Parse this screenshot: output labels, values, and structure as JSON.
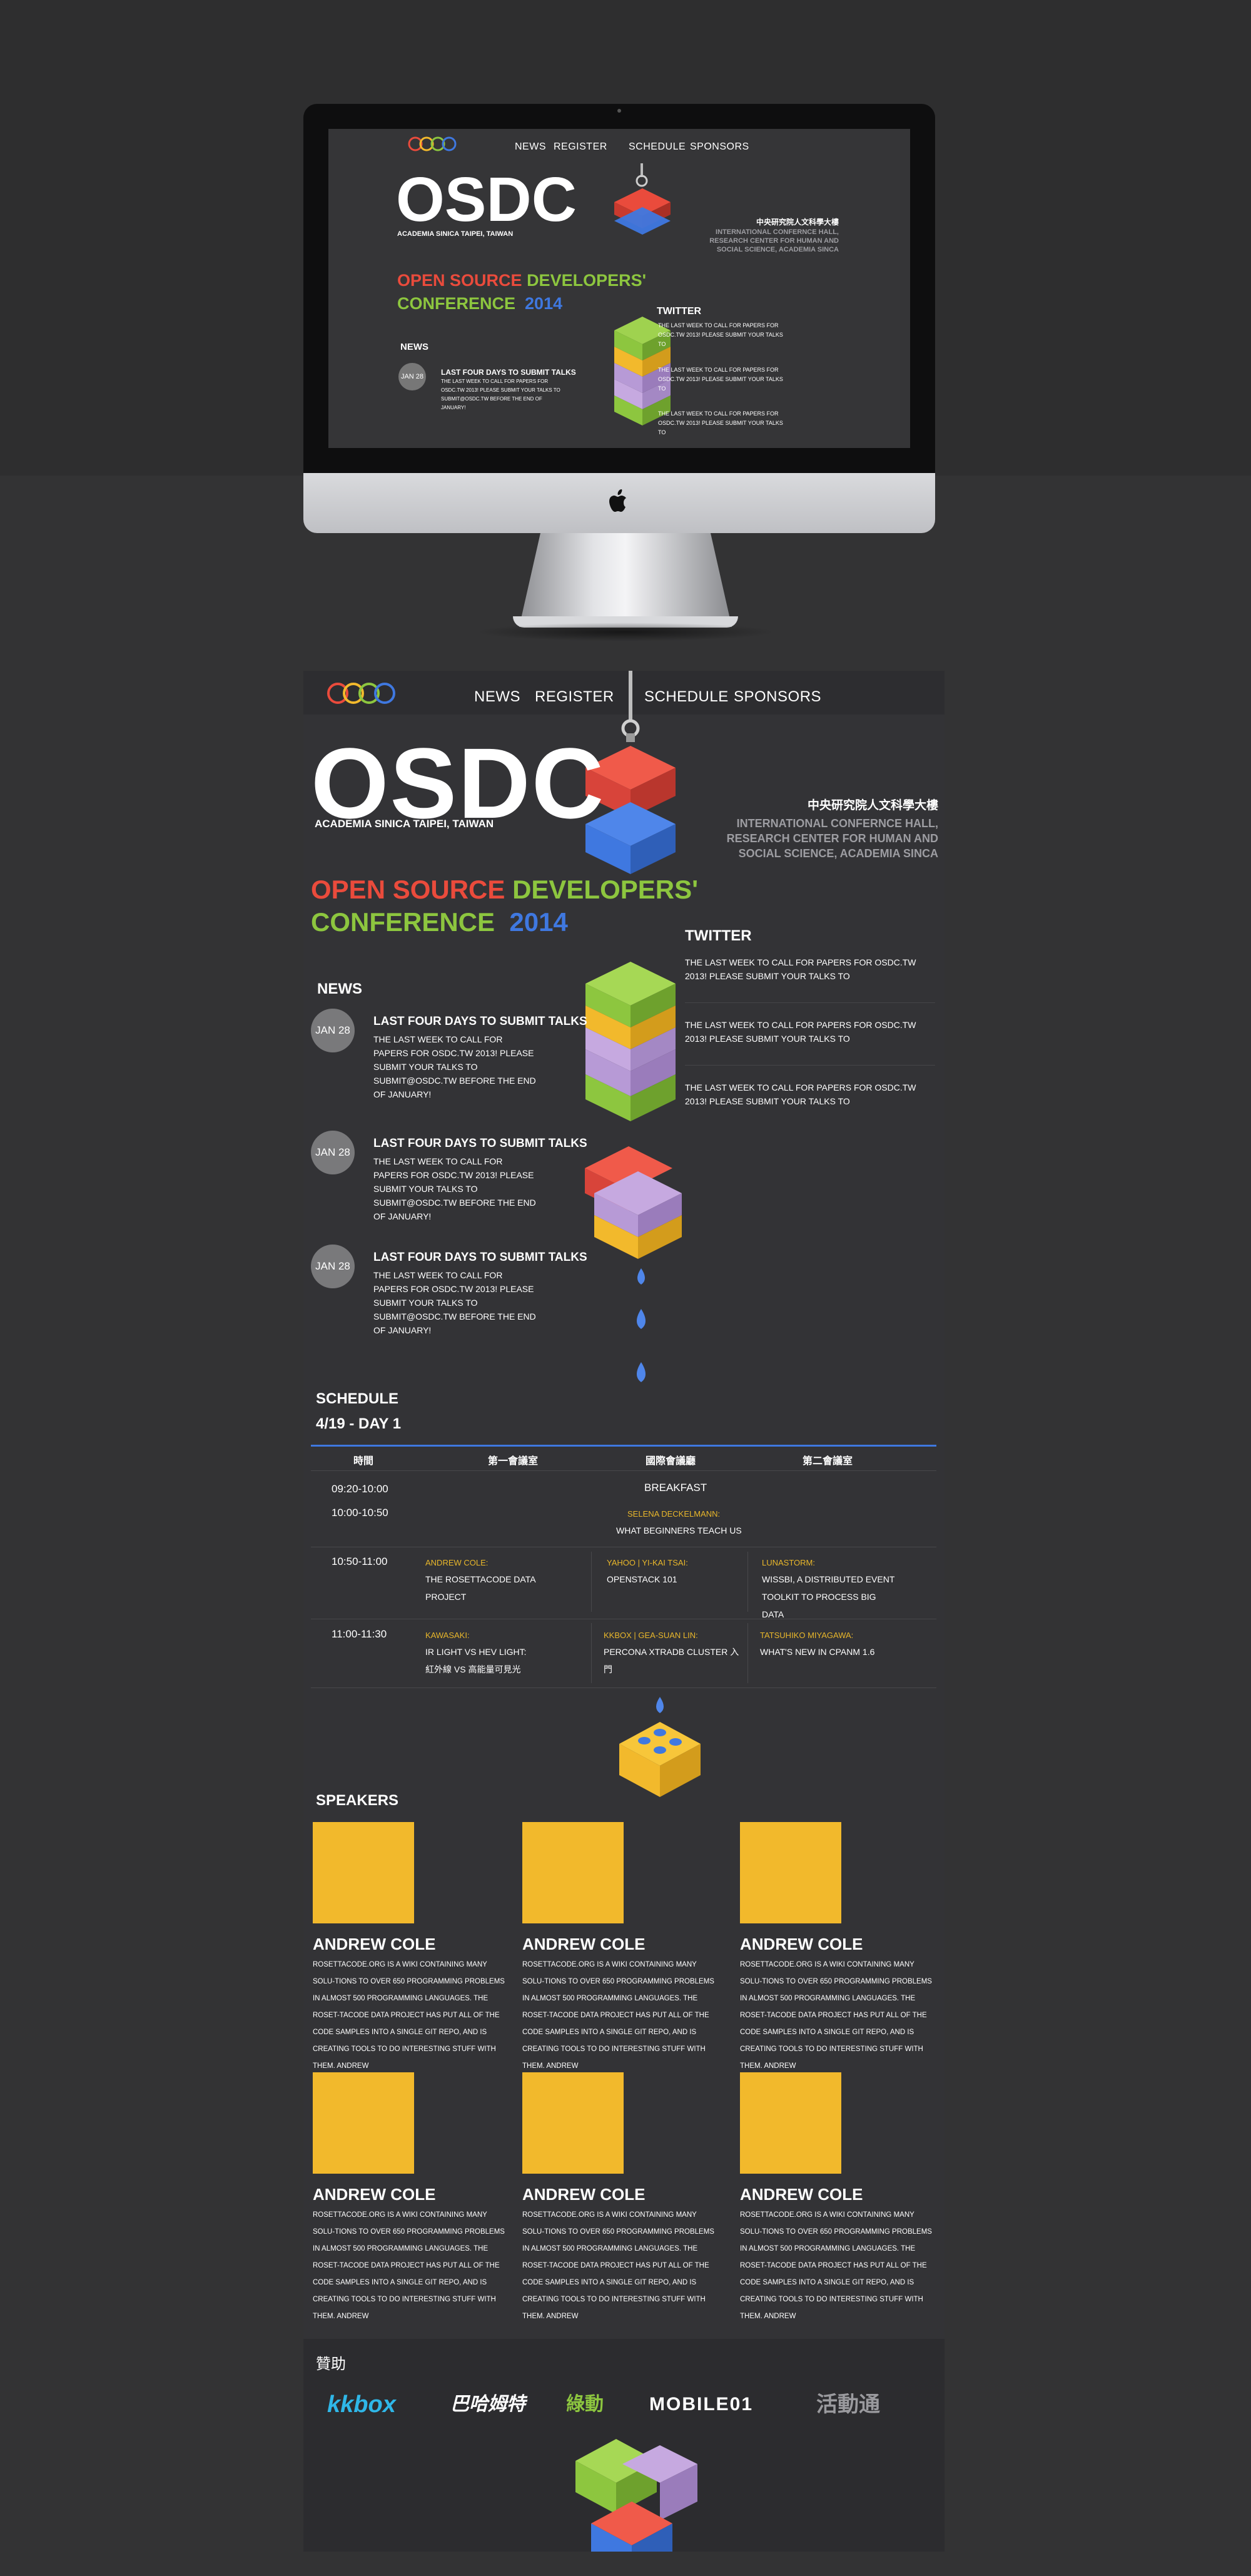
{
  "site": {
    "nav": [
      "NEWS",
      "REGISTER",
      "SCHEDULE",
      "SPONSORS"
    ],
    "hero_title": "OSDC",
    "hero_subtitle": "ACADEMIA SINICA TAIPEI, TAIWAN",
    "venue_cn": "中央研究院人文科學大樓",
    "venue_en": "INTERNATIONAL CONFERNCE HALL, RESEARCH CENTER FOR HUMAN AND SOCIAL SCIENCE, ACADEMIA SINCA",
    "conf_line1_a": "OPEN SOURCE",
    "conf_line1_b": "DEVELOPERS'",
    "conf_line2_a": "CONFERENCE",
    "conf_line2_b": "2014",
    "colors": {
      "red": "#ea4b3c",
      "green": "#8dc63f",
      "blue": "#3f78e0",
      "yellow": "#f2b92c",
      "purple": "#b79ad6"
    }
  },
  "news": {
    "heading": "NEWS",
    "items": [
      {
        "date": "JAN 28",
        "title": "LAST FOUR DAYS TO SUBMIT TALKS",
        "body": "THE LAST WEEK TO CALL FOR PAPERS FOR OSDC.TW 2013! PLEASE SUBMIT YOUR TALKS TO SUBMIT@OSDC.TW BEFORE THE END OF JANUARY!"
      },
      {
        "date": "JAN 28",
        "title": "LAST FOUR DAYS TO SUBMIT TALKS",
        "body": "THE LAST WEEK TO CALL FOR PAPERS FOR OSDC.TW 2013! PLEASE SUBMIT YOUR TALKS TO SUBMIT@OSDC.TW BEFORE THE END OF JANUARY!"
      },
      {
        "date": "JAN 28",
        "title": "LAST FOUR DAYS TO SUBMIT TALKS",
        "body": "THE LAST WEEK TO CALL FOR PAPERS FOR OSDC.TW 2013! PLEASE SUBMIT YOUR TALKS TO SUBMIT@OSDC.TW BEFORE THE END OF JANUARY!"
      }
    ]
  },
  "twitter": {
    "heading": "TWITTER",
    "tweets": [
      "THE LAST WEEK TO CALL FOR PAPERS FOR OSDC.TW 2013! PLEASE SUBMIT YOUR TALKS TO",
      "THE LAST WEEK TO CALL FOR PAPERS FOR OSDC.TW 2013! PLEASE SUBMIT YOUR TALKS TO",
      "THE LAST WEEK TO CALL FOR PAPERS FOR OSDC.TW 2013! PLEASE SUBMIT YOUR TALKS TO"
    ]
  },
  "schedule": {
    "heading": "SCHEDULE",
    "day": "4/19 - DAY 1",
    "columns": [
      "時間",
      "第一會議室",
      "國際會議廳",
      "第二會議室"
    ],
    "rows": [
      {
        "time": "09:20-10:00",
        "all": "BREAKFAST"
      },
      {
        "time": "10:00-10:50",
        "speaker": "SELENA DECKELMANN:",
        "title": "WHAT BEGINNERS TEACH US"
      },
      {
        "time": "10:50-11:00",
        "c1_speaker": "ANDREW COLE:",
        "c1_title": "THE ROSETTACODE DATA PROJECT",
        "c2_speaker": "YAHOO | YI-KAI TSAI:",
        "c2_title": "OPENSTACK 101",
        "c3_speaker": "LUNASTORM:",
        "c3_title": "WISSBI, A DISTRIBUTED EVENT TOOLKIT TO PROCESS BIG DATA"
      },
      {
        "time": "11:00-11:30",
        "c1_speaker": "KAWASAKI:",
        "c1_title": "IR LIGHT VS HEV LIGHT: 紅外線 VS 高能量可見光",
        "c2_speaker": "KKBOX | GEA-SUAN LIN:",
        "c2_title": "PERCONA XTRADB CLUSTER 入門",
        "c3_speaker": "TATSUHIKO MIYAGAWA:",
        "c3_title": "WHAT'S NEW IN CPANM 1.6"
      }
    ]
  },
  "speakers": {
    "heading": "SPEAKERS",
    "items": [
      {
        "name": "ANDREW COLE",
        "bio": "ROSETTACODE.ORG IS A WIKI CONTAINING MANY SOLU-TIONS TO OVER 650 PROGRAMMING PROBLEMS IN ALMOST 500 PROGRAMMING LANGUAGES. THE ROSET-TACODE DATA PROJECT HAS PUT ALL OF THE CODE SAMPLES INTO A SINGLE GIT REPO, AND IS CREATING TOOLS TO DO INTERESTING STUFF WITH THEM. ANDREW"
      },
      {
        "name": "ANDREW COLE",
        "bio": "ROSETTACODE.ORG IS A WIKI CONTAINING MANY SOLU-TIONS TO OVER 650 PROGRAMMING PROBLEMS IN ALMOST 500 PROGRAMMING LANGUAGES. THE ROSET-TACODE DATA PROJECT HAS PUT ALL OF THE CODE SAMPLES INTO A SINGLE GIT REPO, AND IS CREATING TOOLS TO DO INTERESTING STUFF WITH THEM. ANDREW"
      },
      {
        "name": "ANDREW COLE",
        "bio": "ROSETTACODE.ORG IS A WIKI CONTAINING MANY SOLU-TIONS TO OVER 650 PROGRAMMING PROBLEMS IN ALMOST 500 PROGRAMMING LANGUAGES. THE ROSET-TACODE DATA PROJECT HAS PUT ALL OF THE CODE SAMPLES INTO A SINGLE GIT REPO, AND IS CREATING TOOLS TO DO INTERESTING STUFF WITH THEM. ANDREW"
      },
      {
        "name": "ANDREW COLE",
        "bio": "ROSETTACODE.ORG IS A WIKI CONTAINING MANY SOLU-TIONS TO OVER 650 PROGRAMMING PROBLEMS IN ALMOST 500 PROGRAMMING LANGUAGES. THE ROSET-TACODE DATA PROJECT HAS PUT ALL OF THE CODE SAMPLES INTO A SINGLE GIT REPO, AND IS CREATING TOOLS TO DO INTERESTING STUFF WITH THEM. ANDREW"
      },
      {
        "name": "ANDREW COLE",
        "bio": "ROSETTACODE.ORG IS A WIKI CONTAINING MANY SOLU-TIONS TO OVER 650 PROGRAMMING PROBLEMS IN ALMOST 500 PROGRAMMING LANGUAGES. THE ROSET-TACODE DATA PROJECT HAS PUT ALL OF THE CODE SAMPLES INTO A SINGLE GIT REPO, AND IS CREATING TOOLS TO DO INTERESTING STUFF WITH THEM. ANDREW"
      },
      {
        "name": "ANDREW COLE",
        "bio": "ROSETTACODE.ORG IS A WIKI CONTAINING MANY SOLU-TIONS TO OVER 650 PROGRAMMING PROBLEMS IN ALMOST 500 PROGRAMMING LANGUAGES. THE ROSET-TACODE DATA PROJECT HAS PUT ALL OF THE CODE SAMPLES INTO A SINGLE GIT REPO, AND IS CREATING TOOLS TO DO INTERESTING STUFF WITH THEM. ANDREW"
      }
    ]
  },
  "sponsors": {
    "heading": "贊助",
    "logos": [
      "kkbox",
      "巴哈姆特",
      "綠動",
      "MOBILE01",
      "活動通"
    ]
  },
  "device": {
    "icon": "apple-logo-icon"
  }
}
